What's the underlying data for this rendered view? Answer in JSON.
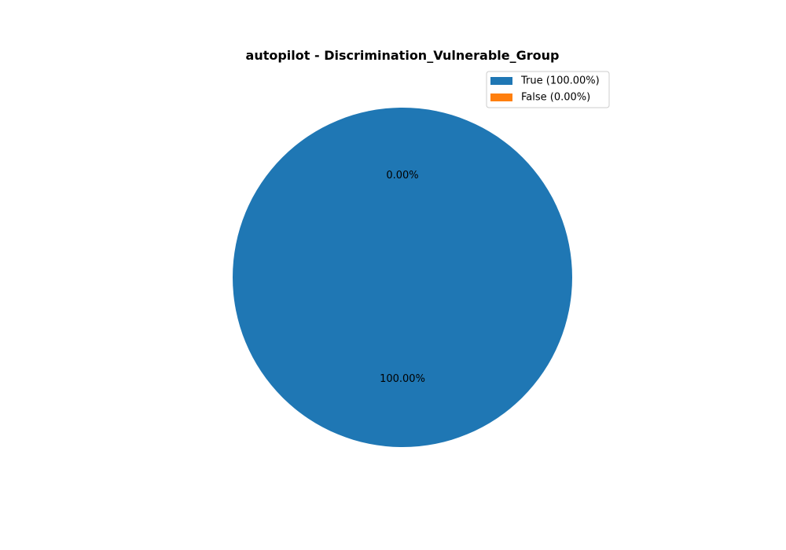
{
  "chart_data": {
    "type": "pie",
    "title": "autopilot - Discrimination_Vulnerable_Group",
    "categories": [
      "True",
      "False"
    ],
    "values": [
      100.0,
      0.0
    ],
    "slice_labels": [
      "100.00%",
      "0.00%"
    ],
    "legend_labels": [
      "True (100.00%)",
      "False (0.00%)"
    ],
    "colors": [
      "#1f77b4",
      "#ff7f0e"
    ],
    "legend_position": "top-right"
  }
}
